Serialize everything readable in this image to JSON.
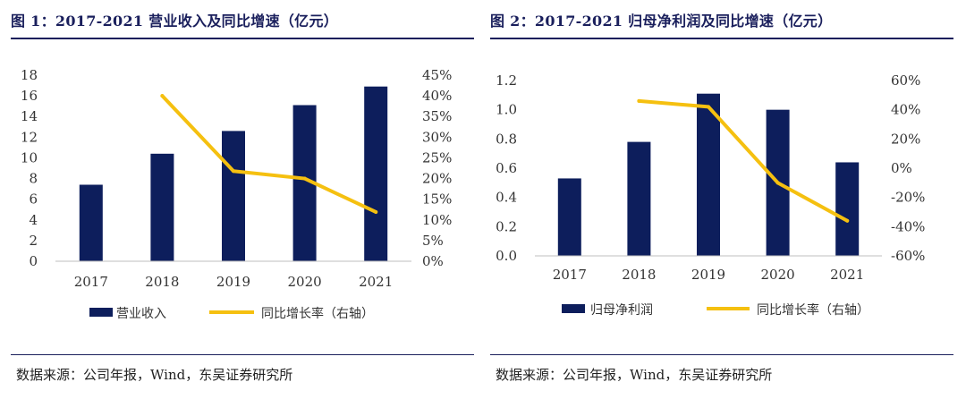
{
  "colors": {
    "bar": "#0d1e5c",
    "line": "#f5c010",
    "title": "#1a1f5c"
  },
  "charts": [
    {
      "title": "图 1：2017-2021 营业收入及同比增速（亿元）",
      "source": "数据来源：公司年报，Wind，东吴证券研究所",
      "left_ticks": [
        "0",
        "2",
        "4",
        "6",
        "8",
        "10",
        "12",
        "14",
        "16",
        "18"
      ],
      "right_ticks": [
        "0%",
        "5%",
        "10%",
        "15%",
        "20%",
        "25%",
        "30%",
        "35%",
        "40%",
        "45%"
      ],
      "legend_bar": "营业收入",
      "legend_line": "同比增长率（右轴）"
    },
    {
      "title": "图 2：2017-2021 归母净利润及同比增速（亿元）",
      "source": "数据来源：公司年报，Wind，东吴证券研究所",
      "left_ticks": [
        "0.0",
        "0.2",
        "0.4",
        "0.6",
        "0.8",
        "1.0",
        "1.2"
      ],
      "right_ticks": [
        "-60%",
        "-40%",
        "-20%",
        "0%",
        "20%",
        "40%",
        "60%"
      ],
      "legend_bar": "归母净利润",
      "legend_line": "同比增长率（右轴）"
    }
  ],
  "chart_data": [
    {
      "type": "bar",
      "title": "2017-2021 营业收入及同比增速（亿元）",
      "categories": [
        "2017",
        "2018",
        "2019",
        "2020",
        "2021"
      ],
      "series": [
        {
          "name": "营业收入",
          "type": "bar",
          "axis": "left",
          "values": [
            7.4,
            10.4,
            12.6,
            15.1,
            16.9
          ]
        },
        {
          "name": "同比增长率（右轴）",
          "type": "line",
          "axis": "right",
          "values": [
            null,
            40.0,
            21.8,
            20.0,
            11.9
          ]
        }
      ],
      "ylim_left": [
        0,
        18
      ],
      "ylim_right": [
        0,
        45
      ],
      "legend": "bottom"
    },
    {
      "type": "bar",
      "title": "2017-2021 归母净利润及同比增速（亿元）",
      "categories": [
        "2017",
        "2018",
        "2019",
        "2020",
        "2021"
      ],
      "series": [
        {
          "name": "归母净利润",
          "type": "bar",
          "axis": "left",
          "values": [
            0.53,
            0.78,
            1.11,
            1.0,
            0.64
          ]
        },
        {
          "name": "同比增长率（右轴）",
          "type": "line",
          "axis": "right",
          "values": [
            null,
            46.0,
            42.0,
            -10.0,
            -36.0
          ]
        }
      ],
      "ylim_left": [
        0,
        1.2
      ],
      "ylim_right": [
        -60,
        60
      ],
      "legend": "bottom"
    }
  ]
}
